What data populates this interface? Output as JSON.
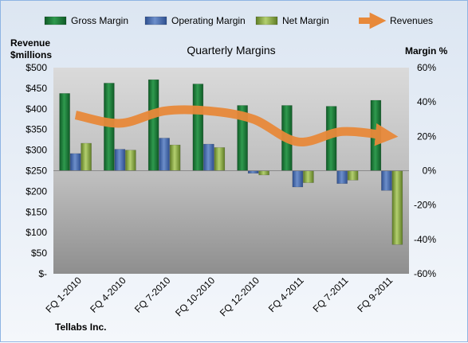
{
  "chart_data": {
    "type": "bar",
    "title": "Quarterly Margins",
    "source_label": "Tellabs Inc.",
    "left_axis_label_line1": "Revenue",
    "left_axis_label_line2": "$millions",
    "right_axis_label": "Margin %",
    "categories": [
      "FQ 1-2010",
      "FQ 4-2010",
      "FQ 7-2010",
      "FQ 10-2010",
      "FQ 12-2010",
      "FQ 4-2011",
      "FQ 7-2011",
      "FQ 9-2011"
    ],
    "left_ylim": [
      0,
      500
    ],
    "left_ticks": [
      0,
      50,
      100,
      150,
      200,
      250,
      300,
      350,
      400,
      450,
      500
    ],
    "left_tick_labels": [
      "$-",
      "$50",
      "$100",
      "$150",
      "$200",
      "$250",
      "$300",
      "$350",
      "$400",
      "$450",
      "$500"
    ],
    "right_ylim": [
      -60,
      60
    ],
    "right_ticks": [
      -60,
      -40,
      -20,
      0,
      20,
      40,
      60
    ],
    "right_tick_labels": [
      "-60%",
      "-40%",
      "-20%",
      "0%",
      "20%",
      "40%",
      "60%"
    ],
    "series": [
      {
        "name": "Gross Margin",
        "kind": "bar",
        "axis": "right",
        "color": "#1e7a3c",
        "values": [
          45.0,
          51.0,
          53.0,
          50.5,
          38.0,
          38.0,
          37.5,
          41.0
        ]
      },
      {
        "name": "Operating Margin",
        "kind": "bar",
        "axis": "right",
        "color": "#4a6fb0",
        "values": [
          10.0,
          12.5,
          19.0,
          15.5,
          -1.5,
          -9.5,
          -7.5,
          -11.5
        ]
      },
      {
        "name": "Net Margin",
        "kind": "bar",
        "axis": "right",
        "color": "#8db04a",
        "values": [
          16.0,
          12.0,
          15.0,
          13.5,
          -2.5,
          -7.0,
          -5.5,
          -43.0
        ]
      },
      {
        "name": "Revenues",
        "kind": "line",
        "axis": "left",
        "color": "#e8893a",
        "values": [
          385,
          365,
          395,
          395,
          375,
          320,
          345,
          335
        ]
      }
    ],
    "grid": false,
    "legend_position": "top"
  }
}
